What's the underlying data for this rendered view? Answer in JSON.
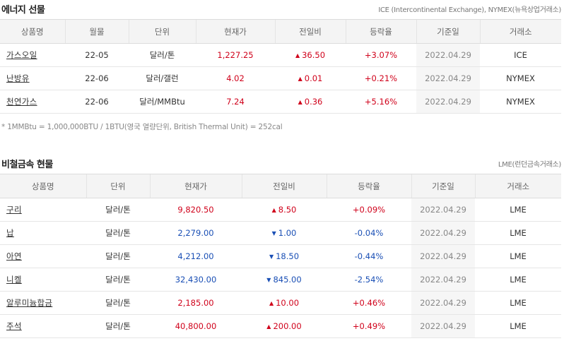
{
  "energy": {
    "title": "에너지 선물",
    "source": "ICE (Intercontinental Exchange), NYMEX(뉴욕상업거래소)",
    "headers": [
      "상품명",
      "월물",
      "단위",
      "현재가",
      "전일비",
      "등락율",
      "기준일",
      "거래소"
    ],
    "rows": [
      {
        "name": "가스오일",
        "month": "22-05",
        "unit": "달러/톤",
        "price": "1,227.25",
        "change": "36.50",
        "direction": "up",
        "rate": "+3.07%",
        "date": "2022.04.29",
        "exchange": "ICE"
      },
      {
        "name": "난방유",
        "month": "22-06",
        "unit": "달러/갤런",
        "price": "4.02",
        "change": "0.01",
        "direction": "up",
        "rate": "+0.21%",
        "date": "2022.04.29",
        "exchange": "NYMEX"
      },
      {
        "name": "천연가스",
        "month": "22-06",
        "unit": "달러/MMBtu",
        "price": "7.24",
        "change": "0.36",
        "direction": "up",
        "rate": "+5.16%",
        "date": "2022.04.29",
        "exchange": "NYMEX"
      }
    ],
    "footnote": "* 1MMBtu = 1,000,000BTU / 1BTU(영국 열량단위, British Thermal Unit) = 252cal"
  },
  "metals": {
    "title": "비철금속 현물",
    "source": "LME(런던금속거래소)",
    "headers": [
      "상품명",
      "단위",
      "현재가",
      "전일비",
      "등락율",
      "기준일",
      "거래소"
    ],
    "rows": [
      {
        "name": "구리",
        "unit": "달러/톤",
        "price": "9,820.50",
        "change": "8.50",
        "direction": "up",
        "rate": "+0.09%",
        "date": "2022.04.29",
        "exchange": "LME"
      },
      {
        "name": "납",
        "unit": "달러/톤",
        "price": "2,279.00",
        "change": "1.00",
        "direction": "down",
        "rate": "-0.04%",
        "date": "2022.04.29",
        "exchange": "LME"
      },
      {
        "name": "아연",
        "unit": "달러/톤",
        "price": "4,212.00",
        "change": "18.50",
        "direction": "down",
        "rate": "-0.44%",
        "date": "2022.04.29",
        "exchange": "LME"
      },
      {
        "name": "니켈",
        "unit": "달러/톤",
        "price": "32,430.00",
        "change": "845.00",
        "direction": "down",
        "rate": "-2.54%",
        "date": "2022.04.29",
        "exchange": "LME"
      },
      {
        "name": "알루미늄합금",
        "unit": "달러/톤",
        "price": "2,185.00",
        "change": "10.00",
        "direction": "up",
        "rate": "+0.46%",
        "date": "2022.04.29",
        "exchange": "LME"
      },
      {
        "name": "주석",
        "unit": "달러/톤",
        "price": "40,800.00",
        "change": "200.00",
        "direction": "up",
        "rate": "+0.49%",
        "date": "2022.04.29",
        "exchange": "LME"
      }
    ]
  },
  "icons": {
    "up": "triangle-up-icon",
    "down": "triangle-down-icon"
  },
  "colors": {
    "up": "#d0021b",
    "down": "#1a4fb5",
    "header_bg": "#f4f4f4"
  }
}
